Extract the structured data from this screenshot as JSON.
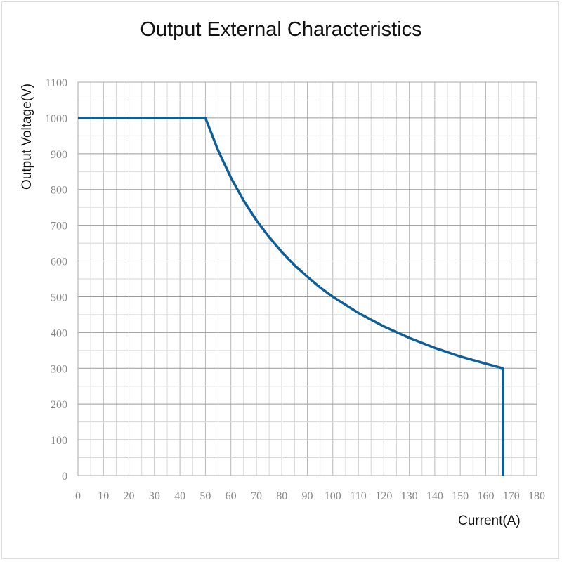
{
  "chart_data": {
    "type": "line",
    "title": "Output External Characteristics",
    "xlabel": "Current(A)",
    "ylabel": "Output Voltage(V)",
    "xlim": [
      0,
      180
    ],
    "ylim": [
      0,
      1100
    ],
    "xticks": [
      0,
      10,
      20,
      30,
      40,
      50,
      60,
      70,
      80,
      90,
      100,
      110,
      120,
      130,
      140,
      150,
      160,
      170,
      180
    ],
    "yticks": [
      0,
      100,
      200,
      300,
      400,
      500,
      600,
      700,
      800,
      900,
      1000,
      1100
    ],
    "grid": true,
    "minor_grid": {
      "x_step": 5,
      "y_step": 50
    },
    "series": [
      {
        "color": "#0f5f96",
        "x": [
          0,
          50,
          55,
          60,
          65,
          70,
          75,
          80,
          85,
          90,
          95,
          100,
          110,
          120,
          130,
          140,
          150,
          160,
          166.7,
          166.7
        ],
        "y": [
          1000,
          1000,
          909,
          833,
          769,
          714,
          667,
          625,
          588,
          556,
          526,
          500,
          455,
          417,
          385,
          357,
          333,
          313,
          300,
          0
        ]
      }
    ]
  }
}
